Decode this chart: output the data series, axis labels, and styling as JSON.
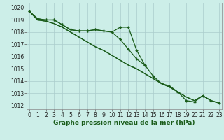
{
  "bg_color": "#cceee8",
  "grid_color": "#aacccc",
  "line_color": "#1a5c1a",
  "x": [
    0,
    1,
    2,
    3,
    4,
    5,
    6,
    7,
    8,
    9,
    10,
    11,
    12,
    13,
    14,
    15,
    16,
    17,
    18,
    19,
    20,
    21,
    22,
    23
  ],
  "series_upper": [
    1019.7,
    1019.1,
    1019.0,
    1019.0,
    1018.6,
    1018.2,
    1018.1,
    1018.1,
    1018.2,
    1018.1,
    1018.0,
    1018.4,
    1018.4,
    1016.5,
    1015.3,
    null,
    null,
    null,
    null,
    null,
    null,
    null,
    null,
    null
  ],
  "series_main": [
    1019.7,
    1019.1,
    1019.0,
    1019.0,
    1018.6,
    1018.2,
    1018.1,
    1018.1,
    1018.2,
    1018.1,
    1018.0,
    1017.4,
    1016.6,
    1015.8,
    1015.3,
    1014.4,
    1013.8,
    1013.6,
    1013.1,
    1012.4,
    1012.3,
    1012.8,
    1012.4,
    1012.2
  ],
  "series_straight1": [
    1019.7,
    1019.0,
    1018.9,
    1018.7,
    1018.4,
    1018.0,
    1017.6,
    1017.2,
    1016.8,
    1016.5,
    1016.1,
    1015.7,
    1015.3,
    1015.0,
    1014.6,
    1014.2,
    1013.8,
    1013.5,
    1013.1,
    1012.7,
    1012.4,
    1012.8,
    1012.4,
    1012.2
  ],
  "series_straight2": [
    1019.7,
    1019.0,
    1018.9,
    1018.7,
    1018.4,
    1018.0,
    1017.6,
    1017.2,
    1016.8,
    1016.5,
    1016.1,
    1015.7,
    1015.3,
    1015.0,
    1014.6,
    1014.2,
    1013.8,
    1013.5,
    1013.1,
    1012.7,
    1012.4,
    1012.8,
    1012.4,
    1012.2
  ],
  "ylim": [
    1011.7,
    1020.4
  ],
  "yticks": [
    1012,
    1013,
    1014,
    1015,
    1016,
    1017,
    1018,
    1019,
    1020
  ],
  "xlabel": "Graphe pression niveau de la mer (hPa)",
  "xticks": [
    0,
    1,
    2,
    3,
    4,
    5,
    6,
    7,
    8,
    9,
    10,
    11,
    12,
    13,
    14,
    15,
    16,
    17,
    18,
    19,
    20,
    21,
    22,
    23
  ],
  "tick_fontsize": 5.5,
  "xlabel_fontsize": 6.5
}
